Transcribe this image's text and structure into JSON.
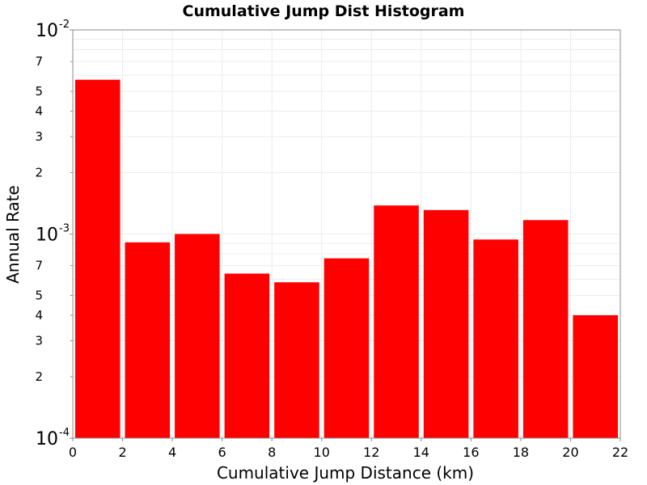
{
  "chart_data": {
    "type": "bar",
    "title": "Cumulative Jump Dist Histogram",
    "xlabel": "Cumulative Jump Distance (km)",
    "ylabel": "Annual Rate",
    "xlim": [
      0,
      22
    ],
    "ylim": [
      0.0001,
      0.01
    ],
    "yscale": "log",
    "grid": true,
    "legend": "none",
    "bar_color": "#ff0000",
    "x_ticks": [
      "0",
      "2",
      "4",
      "6",
      "8",
      "10",
      "12",
      "14",
      "16",
      "18",
      "20",
      "22"
    ],
    "y_major_ticks": [
      {
        "value": 0.01,
        "base": "10",
        "exp": "-2"
      },
      {
        "value": 0.001,
        "base": "10",
        "exp": "-3"
      },
      {
        "value": 0.0001,
        "base": "10",
        "exp": "-4"
      }
    ],
    "y_minor_ticks": [
      {
        "value": 0.007,
        "label": "7"
      },
      {
        "value": 0.005,
        "label": "5"
      },
      {
        "value": 0.004,
        "label": "4"
      },
      {
        "value": 0.003,
        "label": "3"
      },
      {
        "value": 0.002,
        "label": "2"
      },
      {
        "value": 0.0007,
        "label": "7"
      },
      {
        "value": 0.0005,
        "label": "5"
      },
      {
        "value": 0.0004,
        "label": "4"
      },
      {
        "value": 0.0003,
        "label": "3"
      },
      {
        "value": 0.0002,
        "label": "2"
      }
    ],
    "bins": [
      {
        "x0": 0,
        "x1": 2,
        "value": 0.0057
      },
      {
        "x0": 2,
        "x1": 4,
        "value": 0.00091
      },
      {
        "x0": 4,
        "x1": 6,
        "value": 0.001
      },
      {
        "x0": 6,
        "x1": 8,
        "value": 0.00064
      },
      {
        "x0": 8,
        "x1": 10,
        "value": 0.00058
      },
      {
        "x0": 10,
        "x1": 12,
        "value": 0.00076
      },
      {
        "x0": 12,
        "x1": 14,
        "value": 0.00138
      },
      {
        "x0": 14,
        "x1": 16,
        "value": 0.00131
      },
      {
        "x0": 16,
        "x1": 18,
        "value": 0.00094
      },
      {
        "x0": 18,
        "x1": 20,
        "value": 0.00117
      },
      {
        "x0": 20,
        "x1": 22,
        "value": 0.0004
      }
    ]
  }
}
